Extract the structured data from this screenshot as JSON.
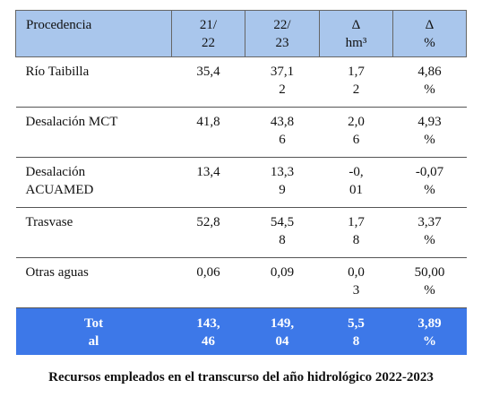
{
  "table": {
    "headers": [
      "Procedencia",
      "21/\n22",
      "22/\n23",
      "Δ\nhm³",
      "Δ\n%"
    ],
    "rows": [
      [
        "Río Taibilla",
        "35,4",
        "37,1\n2",
        "1,7\n2",
        "4,86\n%"
      ],
      [
        "Desalación MCT",
        "41,8",
        "43,8\n6",
        "2,0\n6",
        "4,93\n%"
      ],
      [
        "Desalación\nACUAMED",
        "13,4",
        "13,3\n9",
        "-0,\n01",
        "-0,07\n%"
      ],
      [
        "Trasvase",
        "52,8",
        "54,5\n8",
        "1,7\n8",
        "3,37\n%"
      ],
      [
        "Otras aguas",
        "0,06",
        "0,09",
        "0,0\n3",
        "50,00\n%"
      ]
    ],
    "total": [
      "Tot\nal",
      "143,\n46",
      "149,\n04",
      "5,5\n8",
      "3,89\n%"
    ]
  },
  "caption": "Recursos empleados en el transcurso del año hidrológico 2022-2023",
  "colors": {
    "header_bg": "#a9c6ec",
    "total_bg": "#3d78e8"
  }
}
